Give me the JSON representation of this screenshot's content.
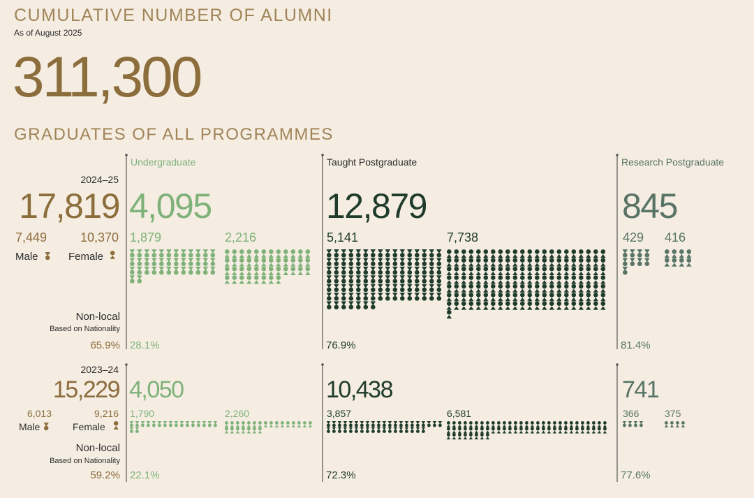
{
  "header": {
    "title": "CUMULATIVE NUMBER OF ALUMNI",
    "subtitle": "As of August 2025",
    "total": "311,300"
  },
  "section_title": "GRADUATES OF ALL PROGRAMMES",
  "programmes": [
    "Undergraduate",
    "Taught Postgraduate",
    "Research Postgraduate"
  ],
  "labels": {
    "male": "Male",
    "female": "Female",
    "non_local": "Non-local",
    "basis": "Based on Nationality"
  },
  "years": [
    {
      "year": "2024–25",
      "total": {
        "value": 17819,
        "label": "17,819"
      },
      "male": {
        "value": 7449,
        "label": "7,449"
      },
      "female": {
        "value": 10370,
        "label": "10,370"
      },
      "non_local": "65.9%",
      "programmes": [
        {
          "total": {
            "value": 4095,
            "label": "4,095"
          },
          "male": {
            "value": 1879,
            "label": "1,879"
          },
          "female": {
            "value": 2216,
            "label": "2,216"
          },
          "non_local": "28.1%"
        },
        {
          "total": {
            "value": 12879,
            "label": "12,879"
          },
          "male": {
            "value": 5141,
            "label": "5,141"
          },
          "female": {
            "value": 7738,
            "label": "7,738"
          },
          "non_local": "76.9%"
        },
        {
          "total": {
            "value": 845,
            "label": "845"
          },
          "male": {
            "value": 429,
            "label": "429"
          },
          "female": {
            "value": 416,
            "label": "416"
          },
          "non_local": "81.4%"
        }
      ]
    },
    {
      "year": "2023–24",
      "total": {
        "value": 15229,
        "label": "15,229"
      },
      "male": {
        "value": 6013,
        "label": "6,013"
      },
      "female": {
        "value": 9216,
        "label": "9,216"
      },
      "non_local": "59.2%",
      "programmes": [
        {
          "total": {
            "value": 4050,
            "label": "4,050"
          },
          "male": {
            "value": 1790,
            "label": "1,790"
          },
          "female": {
            "value": 2260,
            "label": "2,260"
          },
          "non_local": "22.1%"
        },
        {
          "total": {
            "value": 10438,
            "label": "10,438"
          },
          "male": {
            "value": 3857,
            "label": "3,857"
          },
          "female": {
            "value": 6581,
            "label": "6,581"
          },
          "non_local": "72.3%"
        },
        {
          "total": {
            "value": 741,
            "label": "741"
          },
          "male": {
            "value": 366,
            "label": "366"
          },
          "female": {
            "value": 375,
            "label": "375"
          },
          "non_local": "77.6%"
        }
      ]
    }
  ]
}
